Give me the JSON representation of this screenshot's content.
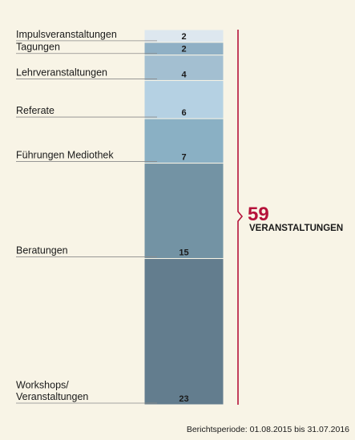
{
  "chart_data": {
    "type": "bar",
    "stacked": true,
    "orientation": "vertical",
    "categories": [
      "Impulsveranstaltungen",
      "Tagungen",
      "Lehrveranstaltungen",
      "Referate",
      "Führungen Mediothek",
      "Beratungen",
      "Workshops/\nVeranstaltungen"
    ],
    "values": [
      2,
      2,
      4,
      6,
      7,
      15,
      23
    ],
    "colors": [
      "#dde7ef",
      "#8fb0c5",
      "#a3bfd1",
      "#b5d1e3",
      "#8ab0c4",
      "#7393a4",
      "#637d8e"
    ],
    "total": {
      "value": "59",
      "label": "VERANSTALTUNGEN",
      "bracket_color": "#b5123a"
    },
    "footer": "Berichtsperiode: 01.08.2015 bis 31.07.2016"
  }
}
